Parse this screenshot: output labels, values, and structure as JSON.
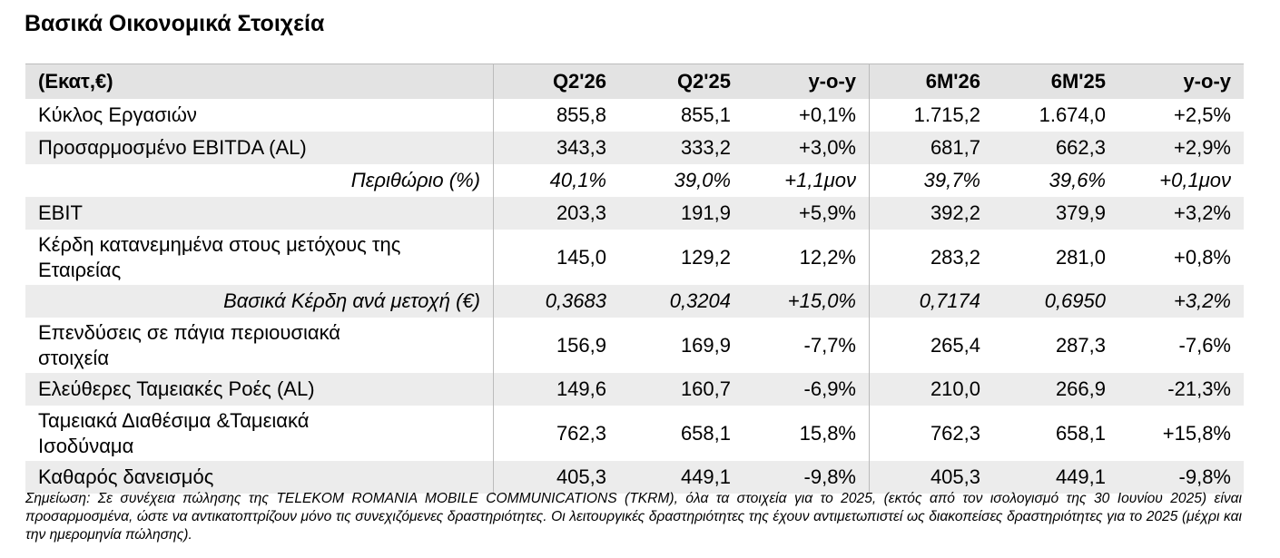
{
  "title": "Βασικά Οικονομικά Στοιχεία",
  "table": {
    "header": [
      "(Εκατ,€)",
      "Q2'26",
      "Q2'25",
      "y-o-y",
      "6M'26",
      "6M'25",
      "y-o-y"
    ],
    "rows": [
      {
        "label": "Κύκλος Εργασιών",
        "values": [
          "855,8",
          "855,1",
          "+0,1%",
          "1.715,2",
          "1.674,0",
          "+2,5%"
        ]
      },
      {
        "label": "Προσαρμοσμένο EBITDA (AL)",
        "values": [
          "343,3",
          "333,2",
          "+3,0%",
          "681,7",
          "662,3",
          "+2,9%"
        ]
      },
      {
        "label": "Περιθώριο (%)",
        "italic": true,
        "values": [
          "40,1%",
          "39,0%",
          "+1,1μον",
          "39,7%",
          "39,6%",
          "+0,1μον"
        ]
      },
      {
        "label": "EBIT",
        "values": [
          "203,3",
          "191,9",
          "+5,9%",
          "392,2",
          "379,9",
          "+3,2%"
        ]
      },
      {
        "label": "Κέρδη κατανεμημένα στους μετόχους της\nΕταιρείας",
        "values": [
          "145,0",
          "129,2",
          "12,2%",
          "283,2",
          "281,0",
          "+0,8%"
        ]
      },
      {
        "label": "Βασικά Κέρδη ανά μετοχή (€)",
        "italic": true,
        "values": [
          "0,3683",
          "0,3204",
          "+15,0%",
          "0,7174",
          "0,6950",
          "+3,2%"
        ]
      },
      {
        "label": "Επενδύσεις σε πάγια περιουσιακά\nστοιχεία",
        "values": [
          "156,9",
          "169,9",
          "-7,7%",
          "265,4",
          "287,3",
          "-7,6%"
        ]
      },
      {
        "label": "Ελεύθερες Ταμειακές Ροές (AL)",
        "values": [
          "149,6",
          "160,7",
          "-6,9%",
          "210,0",
          "266,9",
          "-21,3%"
        ]
      },
      {
        "label": "Ταμειακά Διαθέσιμα &Ταμειακά\nΙσοδύναμα",
        "values": [
          "762,3",
          "658,1",
          "15,8%",
          "762,3",
          "658,1",
          "+15,8%"
        ]
      },
      {
        "label": "Καθαρός δανεισμός",
        "values": [
          "405,3",
          "449,1",
          "-9,8%",
          "405,3",
          "449,1",
          "-9,8%"
        ]
      }
    ]
  },
  "note": "Σημείωση: Σε συνέχεια πώλησης της TELEKOM ROMANIA MOBILE COMMUNICATIONS (TKRM), όλα τα στοιχεία  για το 2025, (εκτός από τον ισολογισμό της 30 Ιουνίου 2025) είναι προσαρμοσμένα, ώστε να αντικατοπτρίζουν μόνο τις συνεχιζόμενες δραστηριότητες. Οι λειτουργικές δραστηριότητες της έχουν αντιμετωπιστεί ως διακοπείσες δραστηριότητες  για το 2025 (μέχρι και την ημερομηνία πώλησης)."
}
